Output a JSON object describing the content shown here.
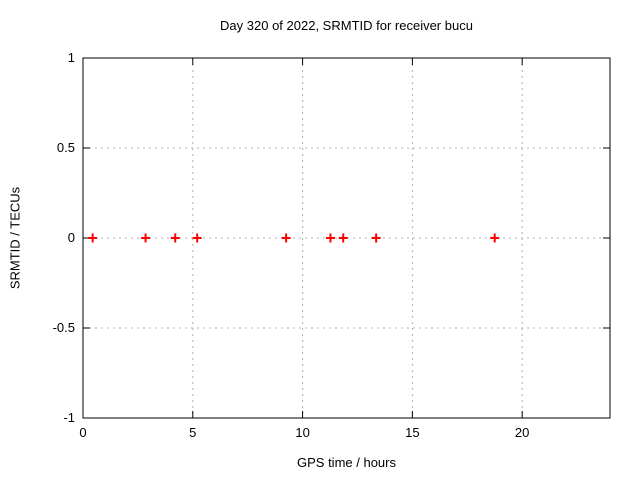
{
  "chart_data": {
    "type": "scatter",
    "title": "Day 320 of 2022, SRMTID for receiver bucu",
    "xlabel": "GPS time / hours",
    "ylabel": "SRMTID / TECUs",
    "xlim": [
      0,
      24
    ],
    "ylim": [
      -1,
      1
    ],
    "xticks": [
      0,
      5,
      10,
      15,
      20
    ],
    "xtick_labels": [
      "0",
      "5",
      "10",
      "15",
      "20"
    ],
    "yticks": [
      -1,
      -0.5,
      0,
      0.5,
      1
    ],
    "ytick_labels": [
      "-1",
      "-0.5",
      "0",
      "0.5",
      "1"
    ],
    "grid": true,
    "legend": "none",
    "series": [
      {
        "name": "SRMTID",
        "marker": "plus",
        "color": "#ff0000",
        "x": [
          0.44,
          2.85,
          4.2,
          5.2,
          9.25,
          11.27,
          11.85,
          13.35,
          18.75
        ],
        "y": [
          0,
          0,
          0,
          0,
          0,
          0,
          0,
          0,
          0
        ]
      }
    ],
    "colors": {
      "background": "#ffffff",
      "axis": "#000000",
      "grid": "#b0b0b0",
      "marker": "#ff0000"
    }
  }
}
